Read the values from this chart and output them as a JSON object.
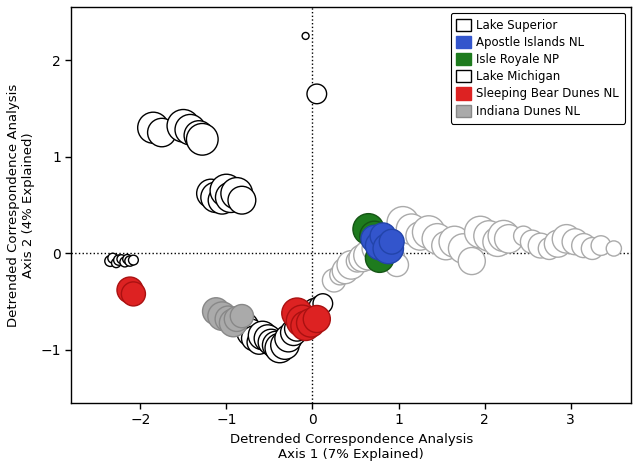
{
  "xlabel": "Detrended Correspondence Analysis\nAxis 1 (7% Explained)",
  "ylabel": "Detrended Correspondence Analysis\nAxis 2 (4% Explained)",
  "xlim": [
    -2.8,
    3.7
  ],
  "ylim": [
    -1.55,
    2.55
  ],
  "xticks": [
    -2,
    -1,
    0,
    1,
    2,
    3
  ],
  "yticks": [
    -1,
    0,
    1,
    2
  ],
  "legend_labels": [
    "Lake Superior",
    "Apostle Islands NL",
    "Isle Royale NP",
    "Lake Michigan",
    "Sleeping Bear Dunes NL",
    "Indiana Dunes NL"
  ],
  "legend_facecolors": [
    "white",
    "#3355CC",
    "#1E7B1E",
    "white",
    "#DD2222",
    "#AAAAAA"
  ],
  "legend_edgecolors": [
    "black",
    "#3355CC",
    "#1E7B1E",
    "black",
    "#DD2222",
    "#888888"
  ],
  "lake_superior": {
    "x": [
      -2.35,
      -2.32,
      -2.28,
      -2.25,
      -2.22,
      -2.18,
      -2.15,
      -2.12,
      -2.08,
      -1.85,
      -1.75,
      -1.5,
      -1.42,
      -1.32,
      -1.28,
      -1.18,
      -1.12,
      -1.05,
      -1.0,
      -0.95,
      -0.88,
      -0.82,
      -0.78,
      -0.72,
      -0.68,
      -0.62,
      -0.58,
      -0.52,
      -0.48,
      -0.42,
      -0.38,
      -0.32,
      -0.28,
      -0.22,
      -0.18,
      -0.12,
      -0.08,
      -0.02,
      0.02,
      0.08,
      0.12
    ],
    "y": [
      -0.08,
      -0.05,
      -0.1,
      -0.07,
      -0.06,
      -0.09,
      -0.06,
      -0.08,
      -0.07,
      1.3,
      1.25,
      1.32,
      1.28,
      1.22,
      1.18,
      0.62,
      0.58,
      0.55,
      0.65,
      0.58,
      0.62,
      0.55,
      -0.75,
      -0.82,
      -0.88,
      -0.92,
      -0.85,
      -0.88,
      -0.92,
      -0.95,
      -0.98,
      -0.95,
      -0.88,
      -0.82,
      -0.78,
      -0.72,
      -0.65,
      -0.62,
      -0.58,
      -0.55,
      -0.52
    ],
    "sizes": [
      60,
      50,
      45,
      55,
      40,
      50,
      45,
      55,
      50,
      500,
      420,
      550,
      480,
      450,
      520,
      420,
      480,
      400,
      550,
      480,
      520,
      400,
      350,
      380,
      320,
      300,
      420,
      380,
      350,
      400,
      450,
      420,
      380,
      350,
      320,
      300,
      280,
      260,
      240,
      220,
      200
    ]
  },
  "lake_superior_upper": {
    "x": [
      -0.08,
      0.05
    ],
    "y": [
      2.25,
      1.65
    ],
    "sizes": [
      25,
      200
    ]
  },
  "apostle_islands": {
    "x": [
      0.72,
      0.78,
      0.82,
      0.88,
      0.92
    ],
    "y": [
      0.15,
      0.08,
      0.18,
      0.05,
      0.12
    ],
    "sizes": [
      380,
      420,
      350,
      480,
      320
    ]
  },
  "isle_royale": {
    "x": [
      0.65,
      0.72,
      0.78,
      0.82
    ],
    "y": [
      0.25,
      0.18,
      -0.05,
      0.08
    ],
    "sizes": [
      500,
      450,
      420,
      380
    ]
  },
  "lake_michigan": {
    "x": [
      0.25,
      0.32,
      0.38,
      0.45,
      0.52,
      0.58,
      0.65,
      0.72,
      0.78,
      0.85,
      0.92,
      0.98,
      1.05,
      1.15,
      1.25,
      1.35,
      1.45,
      1.55,
      1.65,
      1.75,
      1.85,
      1.95,
      2.05,
      2.15,
      2.22,
      2.28,
      2.45,
      2.55,
      2.65,
      2.75,
      2.85,
      2.95,
      3.05,
      3.15,
      3.25,
      3.35,
      3.5
    ],
    "y": [
      -0.28,
      -0.22,
      -0.18,
      -0.12,
      -0.08,
      -0.05,
      -0.02,
      0.05,
      0.08,
      0.05,
      -0.05,
      -0.12,
      0.32,
      0.25,
      0.18,
      0.22,
      0.15,
      0.08,
      0.12,
      0.05,
      -0.08,
      0.22,
      0.18,
      0.12,
      0.18,
      0.15,
      0.18,
      0.12,
      0.08,
      0.05,
      0.1,
      0.15,
      0.12,
      0.08,
      0.05,
      0.08,
      0.05
    ],
    "sizes": [
      280,
      220,
      350,
      420,
      250,
      380,
      450,
      320,
      400,
      380,
      350,
      280,
      520,
      480,
      420,
      550,
      480,
      420,
      500,
      450,
      380,
      520,
      480,
      450,
      500,
      420,
      200,
      280,
      320,
      250,
      380,
      420,
      350,
      300,
      250,
      200,
      120
    ]
  },
  "sleeping_bear": {
    "x": [
      -0.18,
      -0.12,
      -0.08,
      -0.02,
      0.05
    ],
    "y": [
      -0.62,
      -0.7,
      -0.75,
      -0.72,
      -0.68
    ],
    "sizes": [
      480,
      520,
      450,
      420,
      380
    ]
  },
  "sleeping_bear2": {
    "x": [
      -2.12,
      -2.08
    ],
    "y": [
      -0.38,
      -0.42
    ],
    "sizes": [
      350,
      300
    ]
  },
  "indiana_dunes": {
    "x": [
      -1.12,
      -1.05,
      -0.98,
      -0.92,
      -0.88,
      -0.82
    ],
    "y": [
      -0.6,
      -0.65,
      -0.68,
      -0.72,
      -0.68,
      -0.65
    ],
    "sizes": [
      380,
      420,
      350,
      400,
      320,
      280
    ]
  }
}
